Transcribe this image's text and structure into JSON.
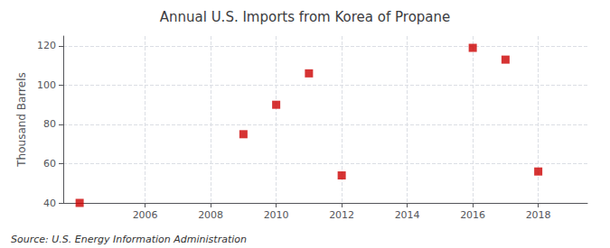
{
  "chart_data": {
    "type": "scatter",
    "title": "Annual U.S. Imports from Korea of Propane",
    "ylabel": "Thousand Barrels",
    "annotations": [
      "Source: U.S. Energy Information Administration"
    ],
    "x": [
      2004,
      2009,
      2010,
      2011,
      2012,
      2016,
      2017,
      2018
    ],
    "values": [
      40,
      75,
      90,
      106,
      54,
      119,
      113,
      56
    ],
    "color": "#cc0000",
    "marker": "square",
    "xlim": [
      2003.5,
      2019.5
    ],
    "xticks": [
      2006,
      2008,
      2010,
      2012,
      2014,
      2016,
      2018
    ],
    "ylim": [
      40,
      125
    ],
    "yticks": [
      40,
      60,
      80,
      100,
      120
    ],
    "grid": true
  }
}
